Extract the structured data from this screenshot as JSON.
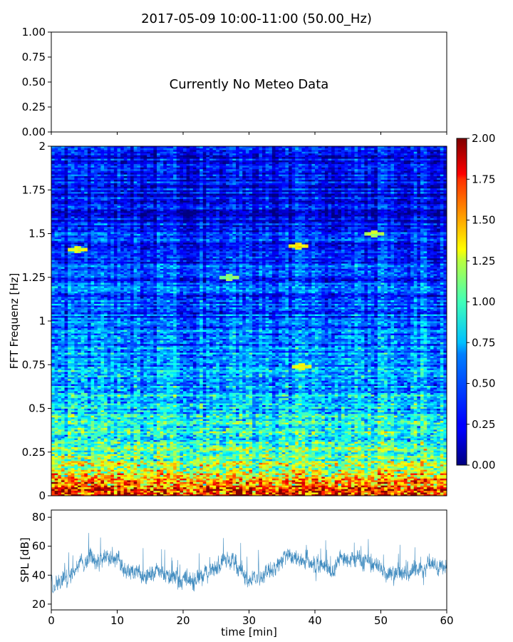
{
  "chart_data": [
    {
      "type": "line",
      "panel": "meteo",
      "title": "2017-05-09 10:00-11:00 (50.00_Hz)",
      "annotation": "Currently No Meteo Data",
      "xlim": [
        0,
        60
      ],
      "ylim": [
        0,
        1
      ],
      "yticks": [
        "0.00",
        "0.25",
        "0.50",
        "0.75",
        "1.00"
      ],
      "yticks_values": [
        0,
        0.25,
        0.5,
        0.75,
        1.0
      ],
      "xticks_values": [
        0,
        10,
        20,
        30,
        40,
        50,
        60
      ],
      "series": []
    },
    {
      "type": "heatmap",
      "panel": "spectrogram",
      "ylabel": "FFT Frequenz [Hz]",
      "xlim": [
        0,
        60
      ],
      "ylim": [
        0,
        2
      ],
      "yticks": [
        "0",
        "0.25",
        "0.5",
        "0.75",
        "1",
        "1.25",
        "1.5",
        "1.75",
        "2"
      ],
      "yticks_values": [
        0,
        0.25,
        0.5,
        0.75,
        1,
        1.25,
        1.5,
        1.75,
        2
      ],
      "colormap": "jet",
      "colorbar": {
        "range": [
          0,
          2
        ],
        "ticks": [
          "0.00",
          "0.25",
          "0.50",
          "0.75",
          "1.00",
          "1.25",
          "1.50",
          "1.75",
          "2.00"
        ],
        "ticks_values": [
          0,
          0.25,
          0.5,
          0.75,
          1,
          1.25,
          1.5,
          1.75,
          2
        ]
      },
      "frequency_profile": {
        "frequency": [
          0,
          0.05,
          0.1,
          0.2,
          0.3,
          0.5,
          0.75,
          1.0,
          1.25,
          1.5,
          1.75,
          2.0
        ],
        "typical_value": [
          1.8,
          1.5,
          1.3,
          1.0,
          0.85,
          0.7,
          0.55,
          0.42,
          0.38,
          0.3,
          0.22,
          0.3
        ]
      },
      "hot_spots": [
        {
          "time": 4,
          "frequency": 1.41,
          "value": 1.2
        },
        {
          "time": 37.5,
          "frequency": 1.43,
          "value": 1.3
        },
        {
          "time": 27,
          "frequency": 1.25,
          "value": 1.0
        },
        {
          "time": 38,
          "frequency": 0.74,
          "value": 1.2
        },
        {
          "time": 49,
          "frequency": 1.5,
          "value": 1.1
        }
      ]
    },
    {
      "type": "line",
      "panel": "spl",
      "xlabel": "time [min]",
      "ylabel": "SPL [dB]",
      "xlim": [
        0,
        60
      ],
      "ylim": [
        16,
        85
      ],
      "xticks": [
        "0",
        "10",
        "20",
        "30",
        "40",
        "50",
        "60"
      ],
      "xticks_values": [
        0,
        10,
        20,
        30,
        40,
        50,
        60
      ],
      "yticks": [
        "20",
        "40",
        "60",
        "80"
      ],
      "yticks_values": [
        20,
        40,
        60,
        80
      ],
      "color": "#1f77b4",
      "series": [
        {
          "x": [
            0,
            2,
            4,
            6,
            8,
            10,
            12,
            14,
            16,
            18,
            20,
            22,
            24,
            26,
            28,
            30,
            32,
            34,
            36,
            38,
            40,
            42,
            44,
            46,
            48,
            50,
            52,
            54,
            56,
            58,
            60
          ],
          "values": [
            36,
            37,
            48,
            52,
            51,
            49,
            41,
            40,
            43,
            37,
            38,
            38,
            42,
            50,
            49,
            36,
            40,
            45,
            54,
            52,
            50,
            40,
            51,
            51,
            49,
            45,
            43,
            42,
            44,
            49,
            45
          ]
        }
      ]
    }
  ]
}
